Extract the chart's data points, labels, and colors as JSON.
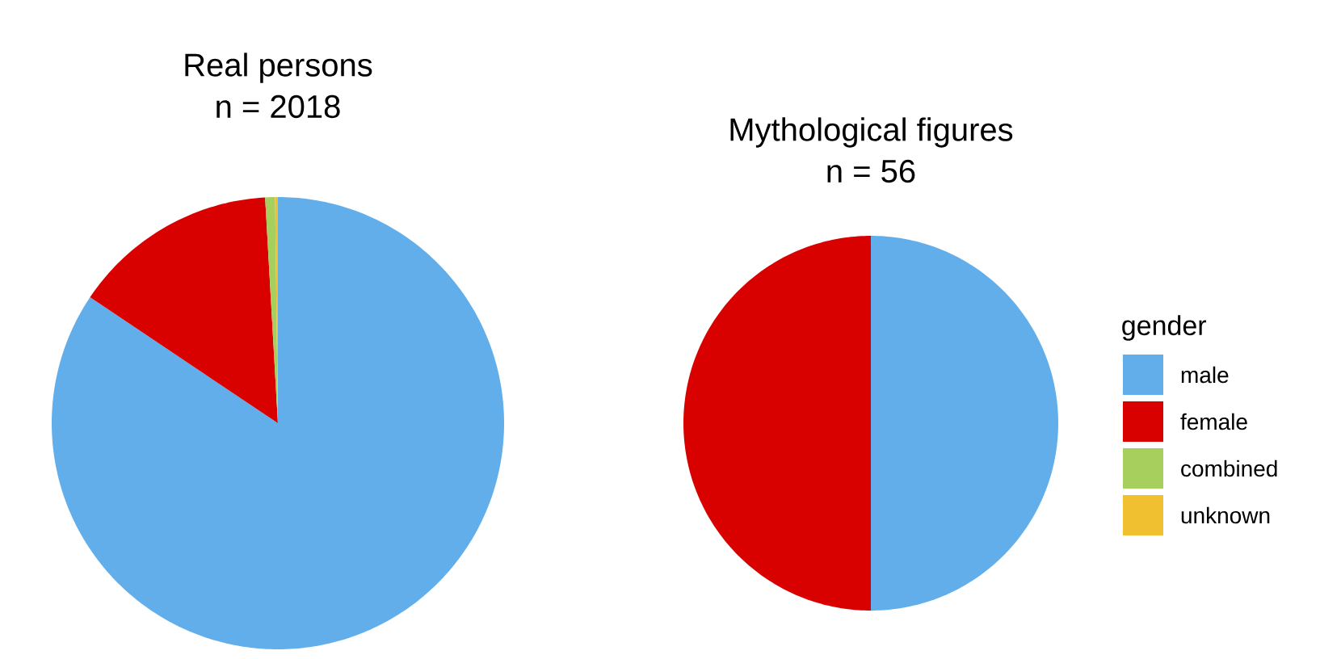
{
  "chart_data": [
    {
      "type": "pie",
      "title": "Real persons",
      "subtitle": "n =  2018",
      "categories": [
        null,
        null,
        null,
        null
      ],
      "values": [
        84.4,
        14.7,
        0.7,
        0.2
      ],
      "colors": [
        "#62aeea",
        "#d90000",
        "#a6cf5e",
        "#f0c030"
      ],
      "legend": false
    },
    {
      "type": "pie",
      "title": "Mythological figures",
      "subtitle": "n =  56",
      "categories": [
        "male",
        "female",
        "combined",
        "unknown"
      ],
      "values": [
        50,
        50,
        0,
        0
      ],
      "colors": [
        "#62aeea",
        "#d90000",
        "#a6cf5e",
        "#f0c030"
      ],
      "legend": "right",
      "legend_title": "gender"
    }
  ]
}
